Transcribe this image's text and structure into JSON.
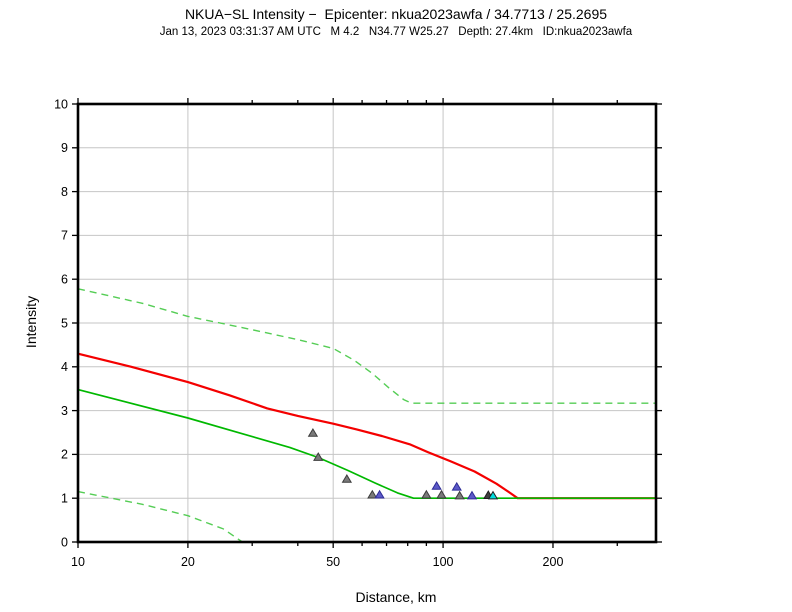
{
  "chart_data": {
    "type": "line",
    "title": "NKUA−SL Intensity −  Epicenter: nkua2023awfa / 34.7713 / 25.2695",
    "subtitle": "Jan 13, 2023 03:31:37 AM UTC   M 4.2   N34.77 W25.27   Depth: 27.4km   ID:nkua2023awfa",
    "xlabel": "Distance, km",
    "ylabel": "Intensity",
    "xscale": "log",
    "xlim": [
      10,
      383
    ],
    "ylim": [
      0,
      10
    ],
    "x_major_ticks": [
      10,
      20,
      50,
      100,
      200
    ],
    "x_minor_ticks": [
      30,
      40,
      60,
      70,
      80,
      90,
      300
    ],
    "y_ticks": [
      0,
      1,
      2,
      3,
      4,
      5,
      6,
      7,
      8,
      9,
      10
    ],
    "grid_x": [
      20,
      50,
      100,
      200
    ],
    "grid_y": [
      1,
      2,
      3,
      4,
      5,
      6,
      7,
      8,
      9
    ],
    "colors": {
      "grid": "#c6c6c6",
      "frame": "#000000"
    },
    "series": [
      {
        "name": "upper-bound-dashed",
        "style": "dashed",
        "color": "#55cd55",
        "width": 1.4,
        "points": [
          [
            10,
            5.78
          ],
          [
            15,
            5.45
          ],
          [
            20,
            5.15
          ],
          [
            28,
            4.9
          ],
          [
            40,
            4.62
          ],
          [
            50,
            4.42
          ],
          [
            57,
            4.15
          ],
          [
            64,
            3.85
          ],
          [
            71,
            3.52
          ],
          [
            78,
            3.25
          ],
          [
            82,
            3.17
          ],
          [
            383,
            3.17
          ]
        ]
      },
      {
        "name": "red-intensity-curve",
        "style": "solid",
        "color": "#f40000",
        "width": 2.2,
        "points": [
          [
            10,
            4.3
          ],
          [
            14,
            4.0
          ],
          [
            20,
            3.65
          ],
          [
            26,
            3.35
          ],
          [
            33,
            3.05
          ],
          [
            40,
            2.88
          ],
          [
            50,
            2.7
          ],
          [
            58,
            2.57
          ],
          [
            68,
            2.42
          ],
          [
            81,
            2.23
          ],
          [
            91,
            2.05
          ],
          [
            105,
            1.84
          ],
          [
            122,
            1.61
          ],
          [
            140,
            1.33
          ],
          [
            152,
            1.13
          ],
          [
            160,
            1.0
          ],
          [
            383,
            1.0
          ]
        ]
      },
      {
        "name": "green-intensity-curve",
        "style": "solid",
        "color": "#00b800",
        "width": 1.7,
        "points": [
          [
            10,
            3.48
          ],
          [
            20,
            2.83
          ],
          [
            28,
            2.48
          ],
          [
            38,
            2.16
          ],
          [
            45.5,
            1.93
          ],
          [
            55,
            1.63
          ],
          [
            65,
            1.35
          ],
          [
            75,
            1.12
          ],
          [
            83,
            1.0
          ],
          [
            383,
            1.0
          ]
        ]
      },
      {
        "name": "lower-bound-dashed",
        "style": "dashed",
        "color": "#55cd55",
        "width": 1.4,
        "points": [
          [
            10,
            1.15
          ],
          [
            15,
            0.86
          ],
          [
            20,
            0.6
          ],
          [
            25,
            0.3
          ],
          [
            28.2,
            0.0
          ]
        ]
      }
    ],
    "points": [
      {
        "x": 44,
        "y": 2.48,
        "color": "gray"
      },
      {
        "x": 45.5,
        "y": 1.93,
        "color": "gray"
      },
      {
        "x": 54.5,
        "y": 1.43,
        "color": "gray"
      },
      {
        "x": 64,
        "y": 1.07,
        "color": "gray"
      },
      {
        "x": 67,
        "y": 1.07,
        "color": "blue"
      },
      {
        "x": 90,
        "y": 1.07,
        "color": "gray"
      },
      {
        "x": 96,
        "y": 1.27,
        "color": "blue"
      },
      {
        "x": 99,
        "y": 1.07,
        "color": "gray"
      },
      {
        "x": 109,
        "y": 1.25,
        "color": "blue"
      },
      {
        "x": 111,
        "y": 1.05,
        "color": "gray"
      },
      {
        "x": 120,
        "y": 1.05,
        "color": "blue"
      },
      {
        "x": 133,
        "y": 1.06,
        "color": "dark"
      },
      {
        "x": 137,
        "y": 1.05,
        "color": "cyan"
      }
    ],
    "marker_colors": {
      "gray": {
        "fill": "#7a7a7a",
        "stroke": "#3c3c3c"
      },
      "blue": {
        "fill": "#5c59c8",
        "stroke": "#2e2c96"
      },
      "dark": {
        "fill": "#3e3e3e",
        "stroke": "#1e1e1e"
      },
      "cyan": {
        "fill": "#00dcdc",
        "stroke": "#202020"
      }
    },
    "legend": null,
    "grid": "on"
  }
}
